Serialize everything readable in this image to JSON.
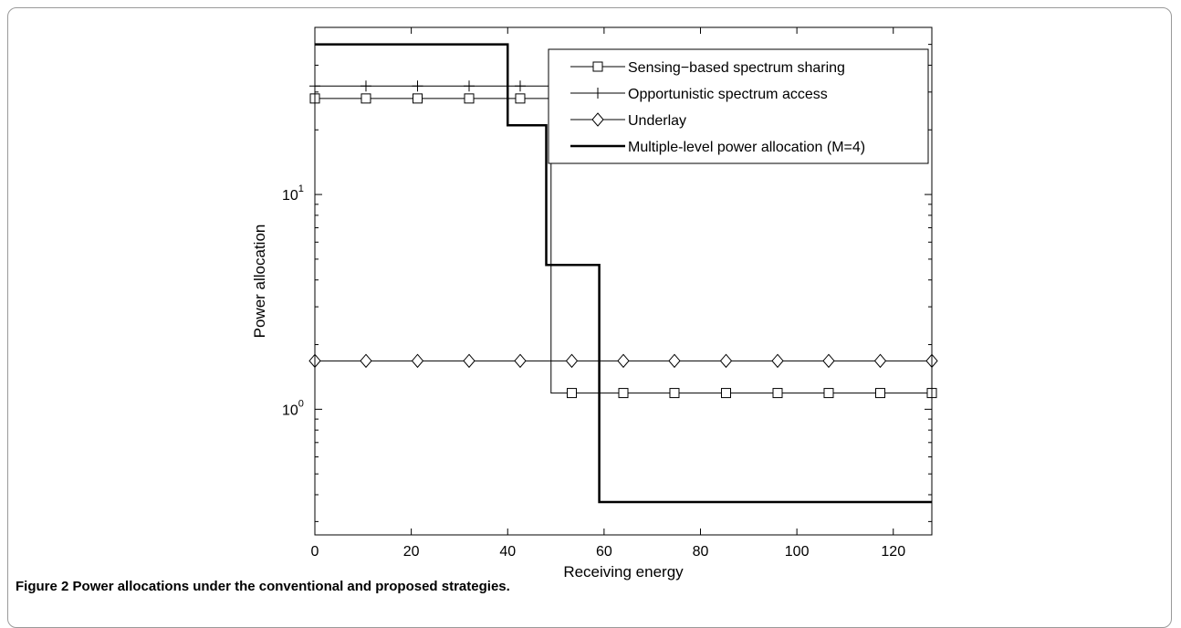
{
  "caption": {
    "label": "Figure 2",
    "text": "Power allocations under the conventional and proposed strategies."
  },
  "chart_data": {
    "type": "line",
    "xlabel": "Receiving energy",
    "ylabel": "Power allocation",
    "xlim": [
      0,
      128
    ],
    "ylim": [
      0.26,
      60
    ],
    "yscale": "log",
    "xticks": [
      0,
      20,
      40,
      60,
      80,
      100,
      120
    ],
    "yticks": [
      {
        "value": 1,
        "label": "10",
        "exp": "0"
      },
      {
        "value": 10,
        "label": "10",
        "exp": "1"
      }
    ],
    "grid": false,
    "legend_position": "top-right",
    "series": [
      {
        "name": "Sensing−based spectrum sharing",
        "marker": "square",
        "linewidth": 1,
        "x": [
          0,
          49,
          49,
          128
        ],
        "y": [
          28,
          28,
          1.19,
          1.19
        ],
        "marker_x": [
          0,
          10.6,
          21.3,
          32,
          42.6,
          53.3,
          64,
          74.6,
          85.3,
          96,
          106.6,
          117.3,
          128
        ],
        "marker_y": [
          28,
          28,
          28,
          28,
          28,
          1.19,
          1.19,
          1.19,
          1.19,
          1.19,
          1.19,
          1.19,
          1.19
        ]
      },
      {
        "name": "Opportunistic spectrum access",
        "marker": "plus",
        "linewidth": 1,
        "x": [
          0,
          48.5
        ],
        "y": [
          32,
          32
        ],
        "marker_x": [
          0,
          10.6,
          21.3,
          32,
          42.6
        ],
        "marker_y": [
          32,
          32,
          32,
          32,
          32
        ]
      },
      {
        "name": "Underlay",
        "marker": "diamond",
        "linewidth": 1,
        "x": [
          0,
          128
        ],
        "y": [
          1.68,
          1.68
        ],
        "marker_x": [
          0,
          10.6,
          21.3,
          32,
          42.6,
          53.3,
          64,
          74.6,
          85.3,
          96,
          106.6,
          117.3,
          128
        ],
        "marker_y": [
          1.68,
          1.68,
          1.68,
          1.68,
          1.68,
          1.68,
          1.68,
          1.68,
          1.68,
          1.68,
          1.68,
          1.68,
          1.68
        ]
      },
      {
        "name": "Multiple-level power allocation (M=4)",
        "marker": "none",
        "linewidth": 2.5,
        "x": [
          0,
          40,
          40,
          48,
          48,
          59,
          59,
          128
        ],
        "y": [
          50,
          50,
          21,
          21,
          4.7,
          4.7,
          0.37,
          0.37
        ],
        "marker_x": [],
        "marker_y": []
      }
    ]
  }
}
